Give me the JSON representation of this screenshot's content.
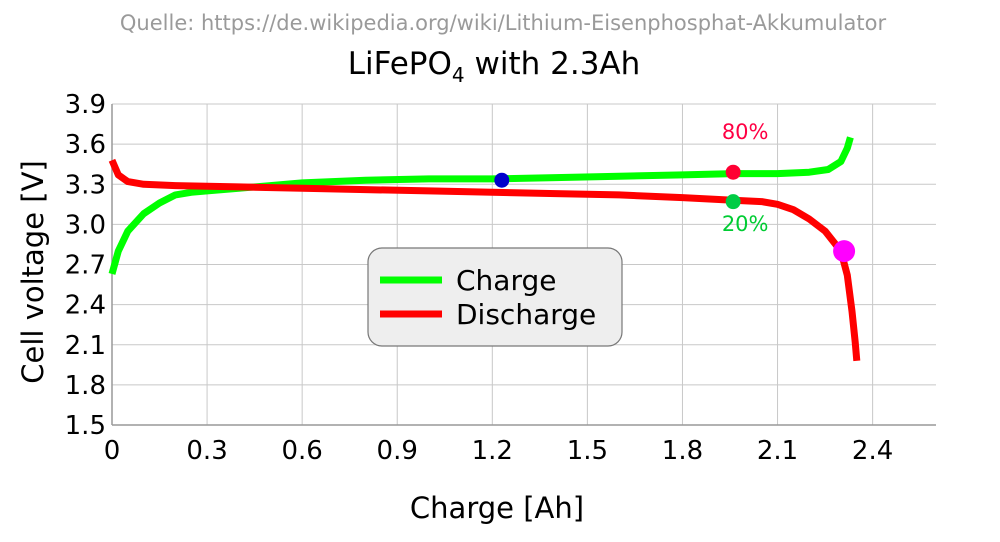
{
  "source_note": "Quelle: https://de.wikipedia.org/wiki/Lithium-Eisenphosphat-Akkumulator",
  "chart_data": {
    "type": "line",
    "title": "LiFePO",
    "title_subscript": "4",
    "title_suffix": " with 2.3Ah",
    "xlabel": "Charge [Ah]",
    "ylabel": "Cell voltage [V]",
    "xlim": [
      0,
      2.6
    ],
    "ylim": [
      1.5,
      3.9
    ],
    "x_ticks": [
      "0",
      "0.3",
      "0.6",
      "0.9",
      "1.2",
      "1.5",
      "1.8",
      "2.1",
      "2.4"
    ],
    "y_ticks": [
      "1.5",
      "1.8",
      "2.1",
      "2.4",
      "2.7",
      "3.0",
      "3.3",
      "3.6",
      "3.9"
    ],
    "grid": true,
    "legend_position": "center",
    "series": [
      {
        "name": "Charge",
        "color": "#00ff00",
        "points": [
          [
            0.0,
            2.63
          ],
          [
            0.02,
            2.8
          ],
          [
            0.05,
            2.95
          ],
          [
            0.1,
            3.08
          ],
          [
            0.15,
            3.16
          ],
          [
            0.2,
            3.22
          ],
          [
            0.25,
            3.24
          ],
          [
            0.3,
            3.25
          ],
          [
            0.4,
            3.27
          ],
          [
            0.5,
            3.29
          ],
          [
            0.6,
            3.31
          ],
          [
            0.8,
            3.33
          ],
          [
            1.0,
            3.34
          ],
          [
            1.2,
            3.34
          ],
          [
            1.4,
            3.35
          ],
          [
            1.6,
            3.36
          ],
          [
            1.8,
            3.37
          ],
          [
            1.96,
            3.38
          ],
          [
            2.1,
            3.38
          ],
          [
            2.2,
            3.39
          ],
          [
            2.26,
            3.41
          ],
          [
            2.3,
            3.47
          ],
          [
            2.32,
            3.57
          ],
          [
            2.33,
            3.65
          ]
        ]
      },
      {
        "name": "Discharge",
        "color": "#ff0000",
        "points": [
          [
            0.0,
            3.48
          ],
          [
            0.02,
            3.37
          ],
          [
            0.05,
            3.32
          ],
          [
            0.1,
            3.3
          ],
          [
            0.2,
            3.29
          ],
          [
            0.4,
            3.28
          ],
          [
            0.6,
            3.27
          ],
          [
            0.8,
            3.26
          ],
          [
            1.0,
            3.25
          ],
          [
            1.2,
            3.24
          ],
          [
            1.4,
            3.23
          ],
          [
            1.6,
            3.22
          ],
          [
            1.8,
            3.2
          ],
          [
            1.96,
            3.18
          ],
          [
            2.05,
            3.17
          ],
          [
            2.1,
            3.15
          ],
          [
            2.15,
            3.11
          ],
          [
            2.2,
            3.04
          ],
          [
            2.25,
            2.95
          ],
          [
            2.3,
            2.8
          ],
          [
            2.32,
            2.62
          ],
          [
            2.335,
            2.35
          ],
          [
            2.345,
            2.12
          ],
          [
            2.35,
            1.98
          ]
        ]
      }
    ],
    "markers": [
      {
        "x": 1.23,
        "y": 3.33,
        "color": "#0000cc",
        "size": "small"
      },
      {
        "x": 1.96,
        "y": 3.39,
        "color": "#ff0033",
        "size": "small"
      },
      {
        "x": 1.96,
        "y": 3.17,
        "color": "#00cc44",
        "size": "small"
      },
      {
        "x": 2.31,
        "y": 2.8,
        "color": "#ff00ff",
        "size": "large"
      }
    ],
    "annotations": [
      {
        "text": "80%",
        "x": 1.96,
        "y": 3.64,
        "color": "#ff0044"
      },
      {
        "text": "20%",
        "x": 1.96,
        "y": 2.95,
        "color": "#00cc33"
      }
    ]
  }
}
